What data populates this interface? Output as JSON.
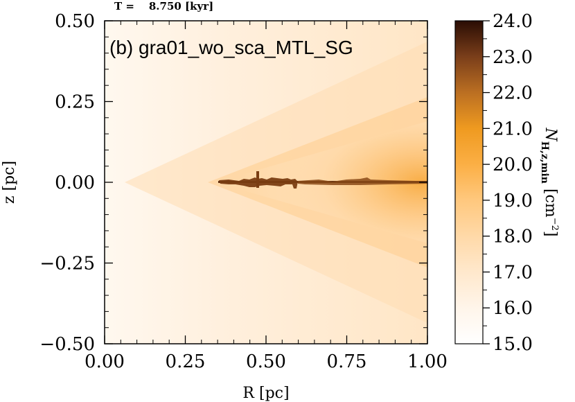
{
  "chart_data": {
    "type": "heatmap",
    "header": "T =    8.750 [kyr]",
    "title": "(b) gra01_wo_sca_MTL_SG",
    "xlabel": "R [pc]",
    "ylabel": "z [pc]",
    "xlim": [
      0.0,
      1.0
    ],
    "ylim": [
      -0.5,
      0.5
    ],
    "xticks": [
      0.0,
      0.25,
      0.5,
      0.75,
      1.0
    ],
    "xtick_labels": [
      "0.00",
      "0.25",
      "0.50",
      "0.75",
      "1.00"
    ],
    "yticks": [
      0.5,
      0.25,
      0.0,
      -0.25,
      -0.5
    ],
    "ytick_labels": [
      "0.50",
      "0.25",
      "0.00",
      "−0.25",
      "−0.50"
    ],
    "colorbar": {
      "label_main": "N",
      "label_sub": "H,z,min",
      "label_unit": " [cm",
      "label_exp": "−2",
      "label_close": "]",
      "range": [
        15.0,
        24.0
      ],
      "ticks": [
        15.0,
        16.0,
        17.0,
        18.0,
        19.0,
        20.0,
        21.0,
        22.0,
        23.0,
        24.0
      ],
      "tick_labels": [
        "15.0",
        "16.0",
        "17.0",
        "18.0",
        "19.0",
        "20.0",
        "21.0",
        "22.0",
        "23.0",
        "24.0"
      ],
      "colors": [
        "#ffffff",
        "#fff5ea",
        "#ffe8cc",
        "#ffd9a8",
        "#ffc87e",
        "#fbaf45",
        "#ef9a20",
        "#bb6f22",
        "#7a3e1a",
        "#2a0d04"
      ]
    },
    "features": {
      "cone_edge_slope": 0.55,
      "dense_disk_z": 0.0,
      "dense_disk_R_range": [
        0.36,
        1.0
      ],
      "dense_disk_value": 23.0
    }
  }
}
